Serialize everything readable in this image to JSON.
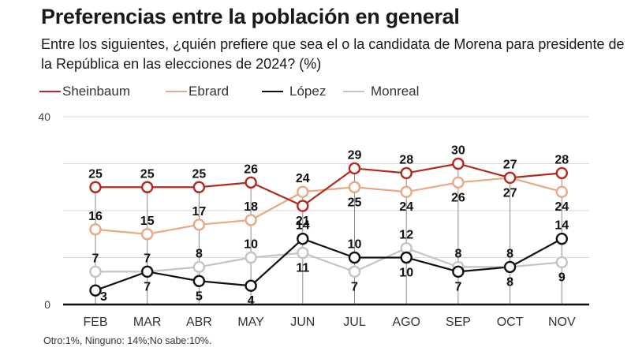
{
  "title": "Preferencias entre la población en general",
  "subtitle": "Entre los siguientes, ¿quién prefiere que sea el o la candidata de Morena para presidente de la República en las elecciones de 2024?  (%)",
  "footnote": "Otro:1%, Ninguno: 14%;No sabe:10%.",
  "chart_data": {
    "type": "line",
    "title": "Preferencias entre la población en general",
    "xlabel": "",
    "ylabel": "",
    "categories": [
      "FEB",
      "MAR",
      "ABR",
      "MAY",
      "JUN",
      "JUL",
      "AGO",
      "SEP",
      "OCT",
      "NOV"
    ],
    "ylim": [
      0,
      40
    ],
    "yticks": [
      0,
      40
    ],
    "gridlines": [
      10,
      20,
      30,
      40
    ],
    "grid": true,
    "legend_position": "top-left",
    "series": [
      {
        "name": "Sheinbaum",
        "color": "#b22a1e",
        "values": [
          25,
          25,
          25,
          26,
          21,
          29,
          28,
          30,
          27,
          28
        ],
        "label_pos": [
          "above",
          "above",
          "above",
          "above",
          "below",
          "above",
          "above",
          "above",
          "above",
          "above"
        ]
      },
      {
        "name": "Ebrard",
        "color": "#e8a883",
        "values": [
          16,
          15,
          17,
          18,
          24,
          25,
          24,
          26,
          27,
          24
        ],
        "label_pos": [
          "above",
          "above",
          "above",
          "above",
          "above",
          "below",
          "below",
          "below",
          "below",
          "below"
        ]
      },
      {
        "name": "López",
        "color": "#111111",
        "values": [
          3,
          7,
          5,
          4,
          14,
          10,
          10,
          7,
          8,
          14
        ],
        "label_pos": [
          "right",
          "below",
          "below",
          "below",
          "above",
          "above",
          "below",
          "below",
          "below",
          "above"
        ]
      },
      {
        "name": "Monreal",
        "color": "#c4c4c4",
        "values": [
          7,
          7,
          8,
          10,
          11,
          7,
          12,
          8,
          8,
          9
        ],
        "label_pos": [
          "above",
          "above",
          "above",
          "above",
          "below",
          "below",
          "above",
          "above",
          "above",
          "below"
        ]
      }
    ]
  }
}
